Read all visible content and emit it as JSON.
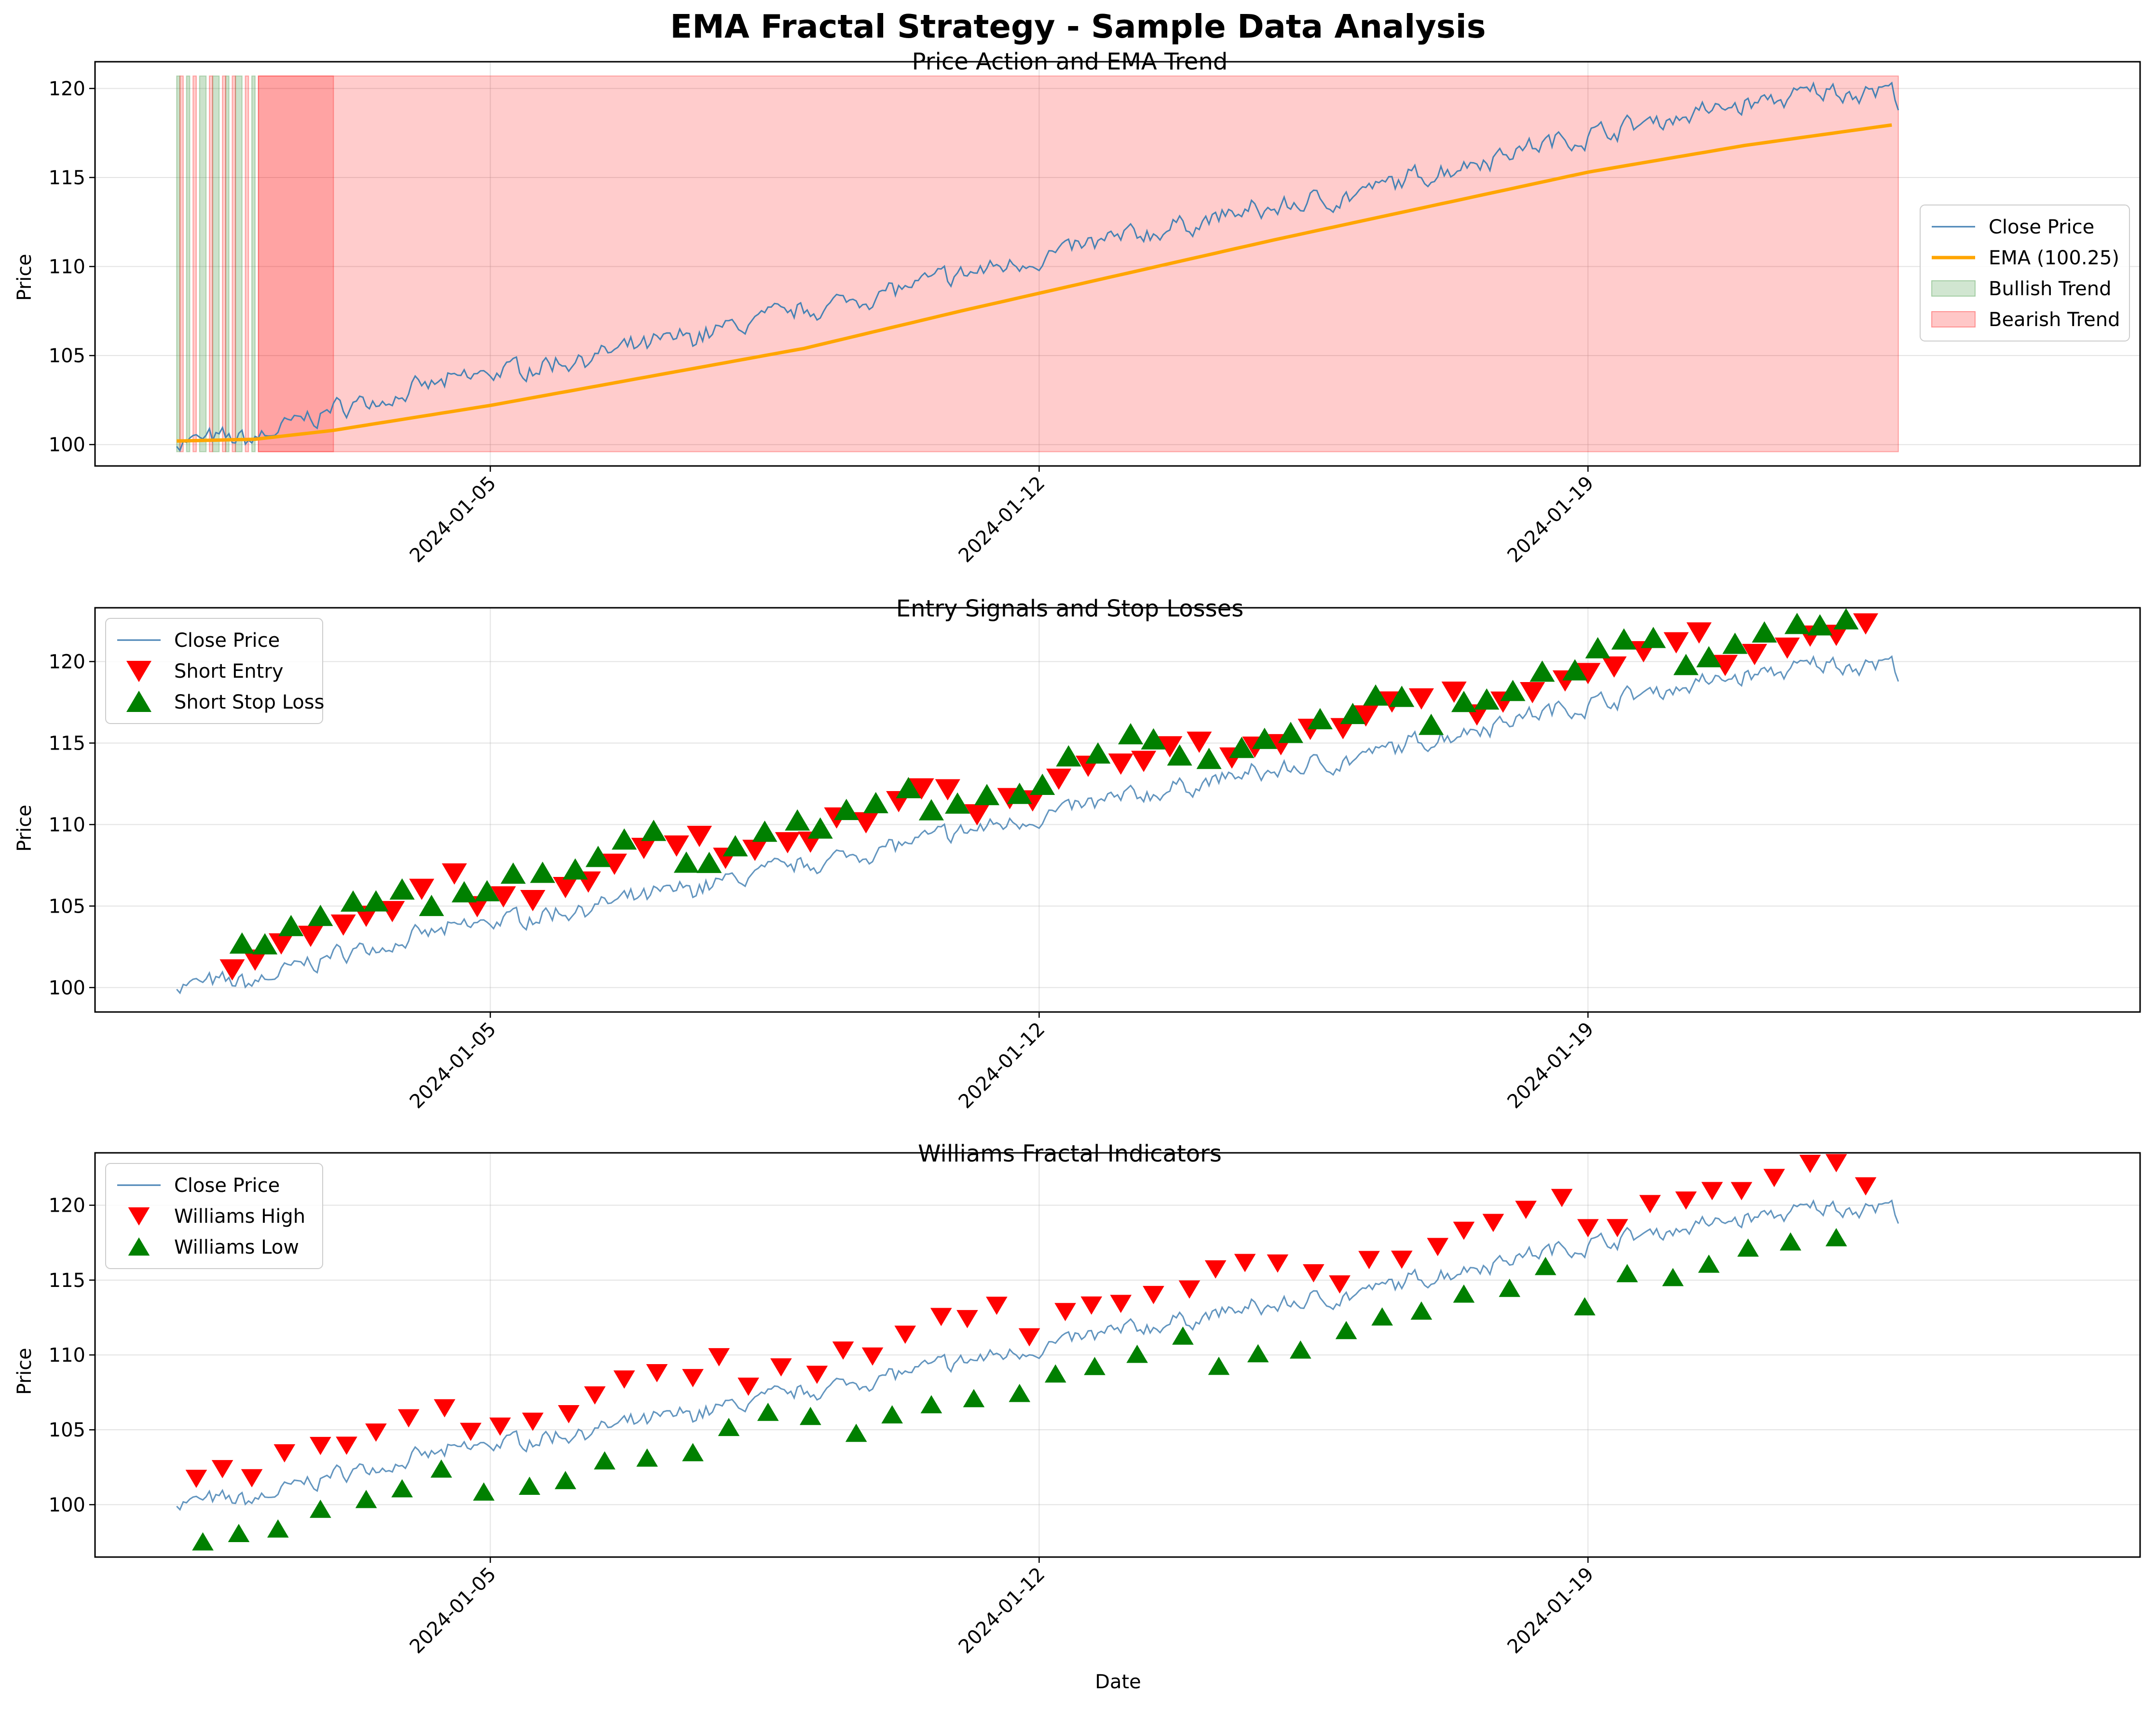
{
  "figure": {
    "suptitle": "EMA Fractal Strategy - Sample Data Analysis",
    "xlabel": "Date"
  },
  "chart_data": [
    {
      "type": "line",
      "title": "Price Action and EMA Trend",
      "xlabel": "",
      "ylabel": "Price",
      "x_range": [
        "2023-12-30T23:00",
        "2024-01-26T01:00"
      ],
      "ylim": [
        98.8,
        121.5
      ],
      "yticks": [
        100,
        105,
        110,
        115,
        120
      ],
      "xticks": [
        "2024-01-05",
        "2024-01-12",
        "2024-01-19"
      ],
      "grid": true,
      "legend": {
        "position": "center-right",
        "entries": [
          "Close Price",
          "EMA (100.25)",
          "Bullish Trend",
          "Bearish Trend"
        ]
      },
      "series": [
        {
          "name": "Close Price",
          "color": "#4682b4",
          "x_start": "2024-01-01T00:00",
          "step_hours": 1,
          "points_control": [
            [
              "2024-01-01T00:00",
              100.2
            ],
            [
              "2024-01-02T00:00",
              100.3
            ],
            [
              "2024-01-03T00:00",
              102.0
            ],
            [
              "2024-01-04T00:00",
              103.0
            ],
            [
              "2024-01-05T00:00",
              104.0
            ],
            [
              "2024-01-07T00:00",
              105.5
            ],
            [
              "2024-01-09T00:00",
              107.5
            ],
            [
              "2024-01-11T00:00",
              109.5
            ],
            [
              "2024-01-12T00:00",
              110.5
            ],
            [
              "2024-01-14T00:00",
              112.5
            ],
            [
              "2024-01-16T00:00",
              114.0
            ],
            [
              "2024-01-18T00:00",
              116.5
            ],
            [
              "2024-01-20T00:00",
              118.3
            ],
            [
              "2024-01-22T00:00",
              119.8
            ],
            [
              "2024-01-22T20:00",
              120.0
            ],
            [
              "2024-01-22T23:00",
              119.3
            ]
          ]
        },
        {
          "name": "EMA (100.25)",
          "color": "#ffa500",
          "points_control": [
            [
              "2024-01-01T00:00",
              100.2
            ],
            [
              "2024-01-02T00:00",
              100.3
            ],
            [
              "2024-01-03T00:00",
              100.8
            ],
            [
              "2024-01-05T00:00",
              102.2
            ],
            [
              "2024-01-07T00:00",
              103.8
            ],
            [
              "2024-01-09T00:00",
              105.4
            ],
            [
              "2024-01-11T00:00",
              107.5
            ],
            [
              "2024-01-13T00:00",
              109.5
            ],
            [
              "2024-01-15T00:00",
              111.5
            ],
            [
              "2024-01-17T00:00",
              113.4
            ],
            [
              "2024-01-19T00:00",
              115.3
            ],
            [
              "2024-01-21T00:00",
              116.8
            ],
            [
              "2024-01-22T23:00",
              118.0
            ]
          ]
        }
      ],
      "bands": {
        "y_range": [
          99.6,
          120.7
        ],
        "bullish": {
          "name": "Bullish Trend",
          "color": "#2e8b2e",
          "intervals": [
            [
              "2024-01-01T00:00",
              "2024-01-01T01:00"
            ],
            [
              "2024-01-01T03:00",
              "2024-01-01T04:00"
            ],
            [
              "2024-01-01T07:00",
              "2024-01-01T09:00"
            ],
            [
              "2024-01-01T11:00",
              "2024-01-01T13:00"
            ],
            [
              "2024-01-01T15:00",
              "2024-01-01T16:00"
            ],
            [
              "2024-01-01T18:00",
              "2024-01-01T20:00"
            ],
            [
              "2024-01-01T23:00",
              "2024-01-02T00:00"
            ]
          ]
        },
        "bearish": {
          "name": "Bearish Trend",
          "color": "#ff0000",
          "intervals": [
            [
              "2024-01-01T01:00",
              "2024-01-01T02:00"
            ],
            [
              "2024-01-01T05:00",
              "2024-01-01T06:00"
            ],
            [
              "2024-01-01T10:00",
              "2024-01-01T11:00"
            ],
            [
              "2024-01-01T14:00",
              "2024-01-01T15:00"
            ],
            [
              "2024-01-01T17:00",
              "2024-01-01T18:00"
            ],
            [
              "2024-01-01T21:00",
              "2024-01-01T22:00"
            ],
            [
              "2024-01-02T01:00",
              "2024-01-02T23:59"
            ],
            [
              "2024-01-02T01:00",
              "2024-01-22T23:00"
            ]
          ]
        }
      }
    },
    {
      "type": "line",
      "title": "Entry Signals and Stop Losses",
      "xlabel": "",
      "ylabel": "Price",
      "x_range": [
        "2023-12-30T23:00",
        "2024-01-26T01:00"
      ],
      "ylim": [
        98.5,
        123.3
      ],
      "yticks": [
        100,
        105,
        110,
        115,
        120
      ],
      "xticks": [
        "2024-01-05",
        "2024-01-12",
        "2024-01-19"
      ],
      "grid": true,
      "legend": {
        "position": "upper-left",
        "entries": [
          "Close Price",
          "Short Entry",
          "Short Stop Loss"
        ]
      },
      "series": [
        {
          "name": "Close Price",
          "color": "#4682b4"
        },
        {
          "name": "Short Entry",
          "color": "#ff0000",
          "marker": "triangle-down",
          "spacing_hours": 7,
          "offset_price": 2.0
        },
        {
          "name": "Short Stop Loss",
          "color": "#008000",
          "marker": "triangle-up",
          "spacing_hours": 7,
          "offset_price": 2.4
        }
      ]
    },
    {
      "type": "line",
      "title": "Williams Fractal Indicators",
      "xlabel": "Date",
      "ylabel": "Price",
      "x_range": [
        "2023-12-30T23:00",
        "2024-01-26T01:00"
      ],
      "ylim": [
        96.5,
        123.5
      ],
      "yticks": [
        100,
        105,
        110,
        115,
        120
      ],
      "xticks": [
        "2024-01-05",
        "2024-01-12",
        "2024-01-19"
      ],
      "grid": true,
      "legend": {
        "position": "upper-left",
        "entries": [
          "Close Price",
          "Williams High",
          "Williams Low"
        ]
      },
      "series": [
        {
          "name": "Close Price",
          "color": "#4682b4"
        },
        {
          "name": "Williams High",
          "color": "#ff0000",
          "marker": "triangle-down",
          "spacing_hours": 8,
          "offset_price": 2.2
        },
        {
          "name": "Williams Low",
          "color": "#008000",
          "marker": "triangle-up",
          "spacing_hours": 11,
          "offset_price": -2.3
        }
      ]
    }
  ]
}
